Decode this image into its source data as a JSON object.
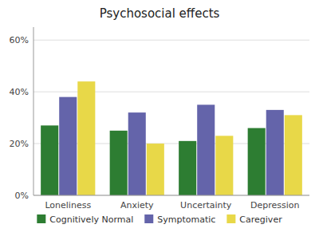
{
  "chart_data": {
    "type": "bar",
    "title": "Psychosocial effects",
    "categories": [
      "Loneliness",
      "Anxiety",
      "Uncertainty",
      "Depression"
    ],
    "series": [
      {
        "name": "Cognitively Normal",
        "color": "#2d7d32",
        "values": [
          0.27,
          0.25,
          0.21,
          0.26
        ]
      },
      {
        "name": "Symptomatic",
        "color": "#6464aa",
        "values": [
          0.38,
          0.32,
          0.35,
          0.33
        ]
      },
      {
        "name": "Caregiver",
        "color": "#e8d848",
        "values": [
          0.44,
          0.2,
          0.23,
          0.31
        ]
      }
    ],
    "ylim": [
      0,
      0.65
    ],
    "yticks": [
      {
        "value": 0.0,
        "label": "0%"
      },
      {
        "value": 0.2,
        "label": "20%"
      },
      {
        "value": 0.4,
        "label": "40%"
      },
      {
        "value": 0.6,
        "label": "60%"
      }
    ],
    "grid": true,
    "legend": "bottom"
  }
}
